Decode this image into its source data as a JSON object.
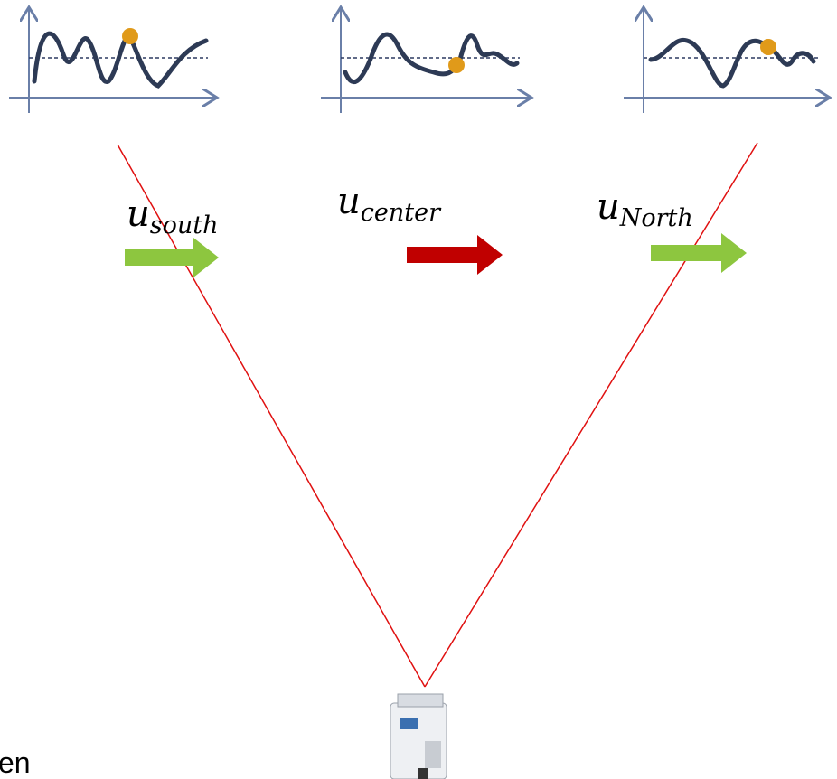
{
  "labels": [
    {
      "base": "u",
      "sub": "south"
    },
    {
      "base": "u",
      "sub": "center"
    },
    {
      "base": "u",
      "sub": "North"
    }
  ],
  "footer_text": "en"
}
